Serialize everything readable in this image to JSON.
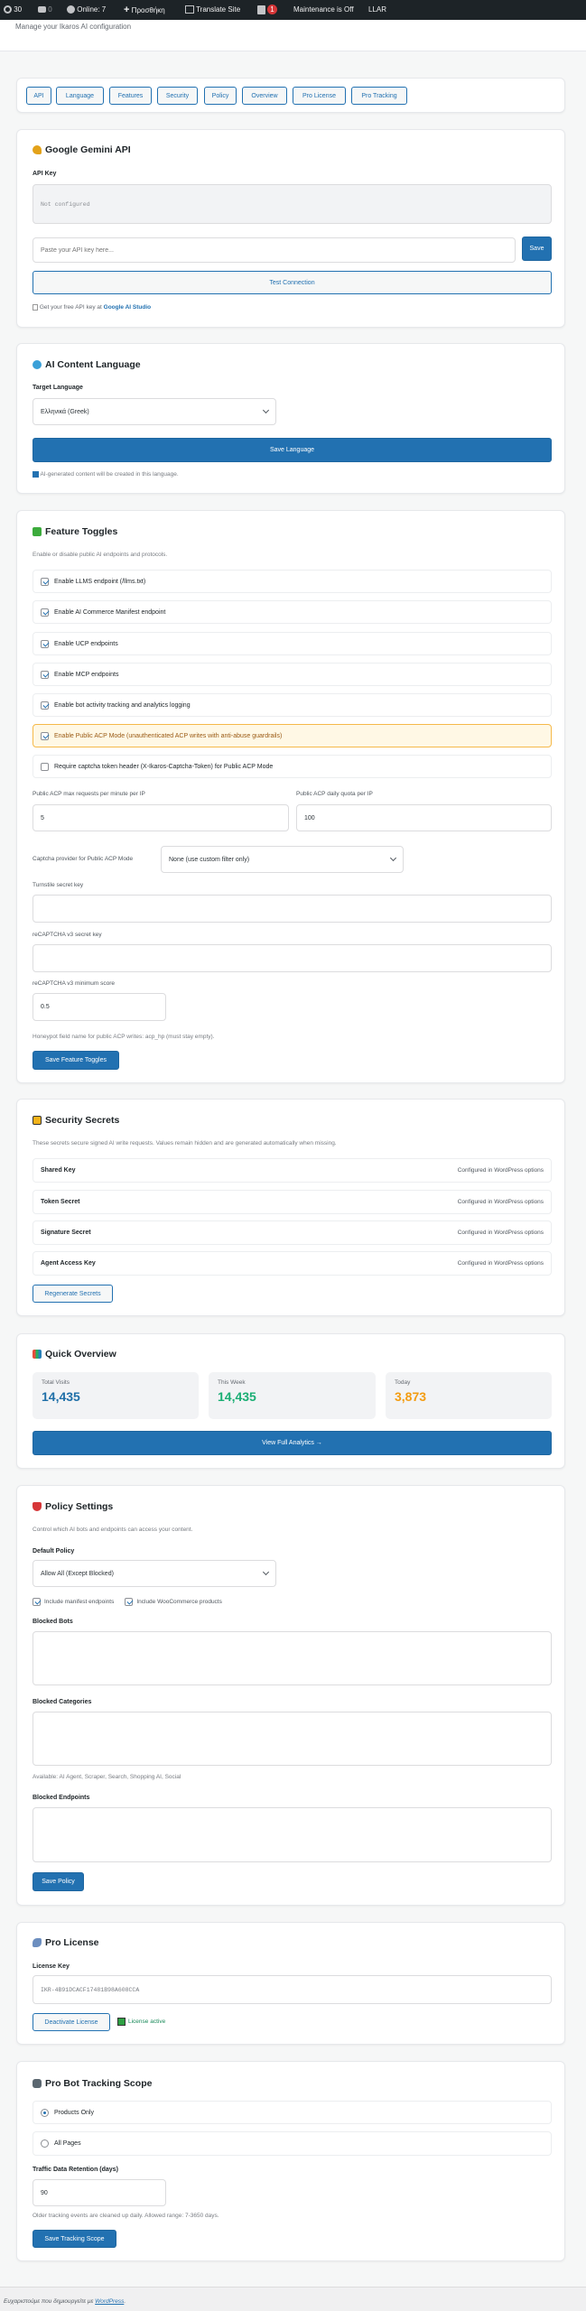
{
  "admin_bar": {
    "updates": "30",
    "comments": "0",
    "online": "Online: 7",
    "add_new": "Προσθήκη",
    "translate": "Translate Site",
    "yoast_badge": "1",
    "maintenance": "Maintenance is Off",
    "llar": "LLAR"
  },
  "header": {
    "subtitle": "Manage your Ikaros AI configuration"
  },
  "tabs": [
    "API",
    "Language",
    "Features",
    "Security",
    "Policy",
    "Overview",
    "Pro License",
    "Pro Tracking"
  ],
  "gemini": {
    "title": "Google Gemini API",
    "icon": "key-icon",
    "api_key_label": "API Key",
    "status_value": "Not configured",
    "input_placeholder": "Paste your API key here...",
    "save": "Save",
    "test": "Test Connection",
    "hint_prefix": "Get your free API key at",
    "hint_link": "Google AI Studio"
  },
  "language": {
    "title": "AI Content Language",
    "icon": "globe-icon",
    "label": "Target Language",
    "selected": "Ελληνικά (Greek)",
    "save": "Save Language",
    "note": "AI-generated content will be created in this language."
  },
  "features": {
    "title": "Feature Toggles",
    "icon": "puzzle-icon",
    "desc": "Enable or disable public AI endpoints and protocols.",
    "toggles": [
      {
        "label": "Enable LLMS endpoint (/llms.txt)",
        "checked": true
      },
      {
        "label": "Enable AI Commerce Manifest endpoint",
        "checked": true
      },
      {
        "label": "Enable UCP endpoints",
        "checked": true
      },
      {
        "label": "Enable MCP endpoints",
        "checked": true
      },
      {
        "label": "Enable bot activity tracking and analytics logging",
        "checked": true
      },
      {
        "label": "Enable Public ACP Mode (unauthenticated ACP writes with anti-abuse guardrails)",
        "checked": true,
        "highlight": true
      },
      {
        "label": "Require captcha token header (X-Ikaros-Captcha-Token) for Public ACP Mode",
        "checked": false
      }
    ],
    "max_req_label": "Public ACP max requests per minute per IP",
    "max_req_value": "5",
    "quota_label": "Public ACP daily quota per IP",
    "quota_value": "100",
    "captcha_label": "Captcha provider for Public ACP Mode",
    "captcha_selected": "None (use custom filter only)",
    "turnstile_label": "Turnstile secret key",
    "turnstile_value": "",
    "recaptcha_label": "reCAPTCHA v3 secret key",
    "recaptcha_value": "",
    "min_score_label": "reCAPTCHA v3 minimum score",
    "min_score_value": "0.5",
    "honeypot": "Honeypot field name for public ACP writes: acp_hp (must stay empty).",
    "save": "Save Feature Toggles"
  },
  "security": {
    "title": "Security Secrets",
    "icon": "lock-icon",
    "desc": "These secrets secure signed AI write requests. Values remain hidden and are generated automatically when missing.",
    "rows": [
      {
        "name": "Shared Key",
        "status": "Configured in WordPress options"
      },
      {
        "name": "Token Secret",
        "status": "Configured in WordPress options"
      },
      {
        "name": "Signature Secret",
        "status": "Configured in WordPress options"
      },
      {
        "name": "Agent Access Key",
        "status": "Configured in WordPress options"
      }
    ],
    "regenerate": "Regenerate Secrets"
  },
  "overview": {
    "title": "Quick Overview",
    "icon": "bar-chart-icon",
    "stats": [
      {
        "label": "Total Visits",
        "value": "14,435",
        "color": "#1f6fa8"
      },
      {
        "label": "This Week",
        "value": "14,435",
        "color": "#1aae74"
      },
      {
        "label": "Today",
        "value": "3,873",
        "color": "#f39c12"
      }
    ],
    "button": "View Full Analytics →"
  },
  "policy": {
    "title": "Policy Settings",
    "icon": "shield-icon",
    "desc": "Control which AI bots and endpoints can access your content.",
    "default_label": "Default Policy",
    "default_selected": "Allow All (Except Blocked)",
    "include_manifest": "Include manifest endpoints",
    "include_woo": "Include WooCommerce products",
    "blocked_bots_label": "Blocked Bots",
    "blocked_categories_label": "Blocked Categories",
    "available": "Available: AI Agent, Scraper, Search, Shopping AI, Social",
    "blocked_endpoints_label": "Blocked Endpoints",
    "save": "Save Policy"
  },
  "license": {
    "title": "Pro License",
    "icon": "rocket-icon",
    "label": "License Key",
    "value": "IKR-4B91DCACF17481B98A608CCA",
    "deactivate": "Deactivate License",
    "status": "License active"
  },
  "tracking": {
    "title": "Pro Bot Tracking Scope",
    "icon": "robot-icon",
    "options": [
      {
        "label": "Products Only",
        "selected": true
      },
      {
        "label": "All Pages",
        "selected": false
      }
    ],
    "retention_label": "Traffic Data Retention (days)",
    "retention_value": "90",
    "help": "Older tracking events are cleaned up daily. Allowed range: 7-3650 days.",
    "save": "Save Tracking Scope"
  },
  "footer": {
    "text": "Ευχαριστούμε που δημιουργείτε με",
    "link": "WordPress",
    "suffix": "."
  },
  "colors": {
    "primary": "#2271b1",
    "admin_bar": "#1d2327",
    "highlight_bg": "#fff8e5",
    "highlight_border": "#f5b94a"
  }
}
